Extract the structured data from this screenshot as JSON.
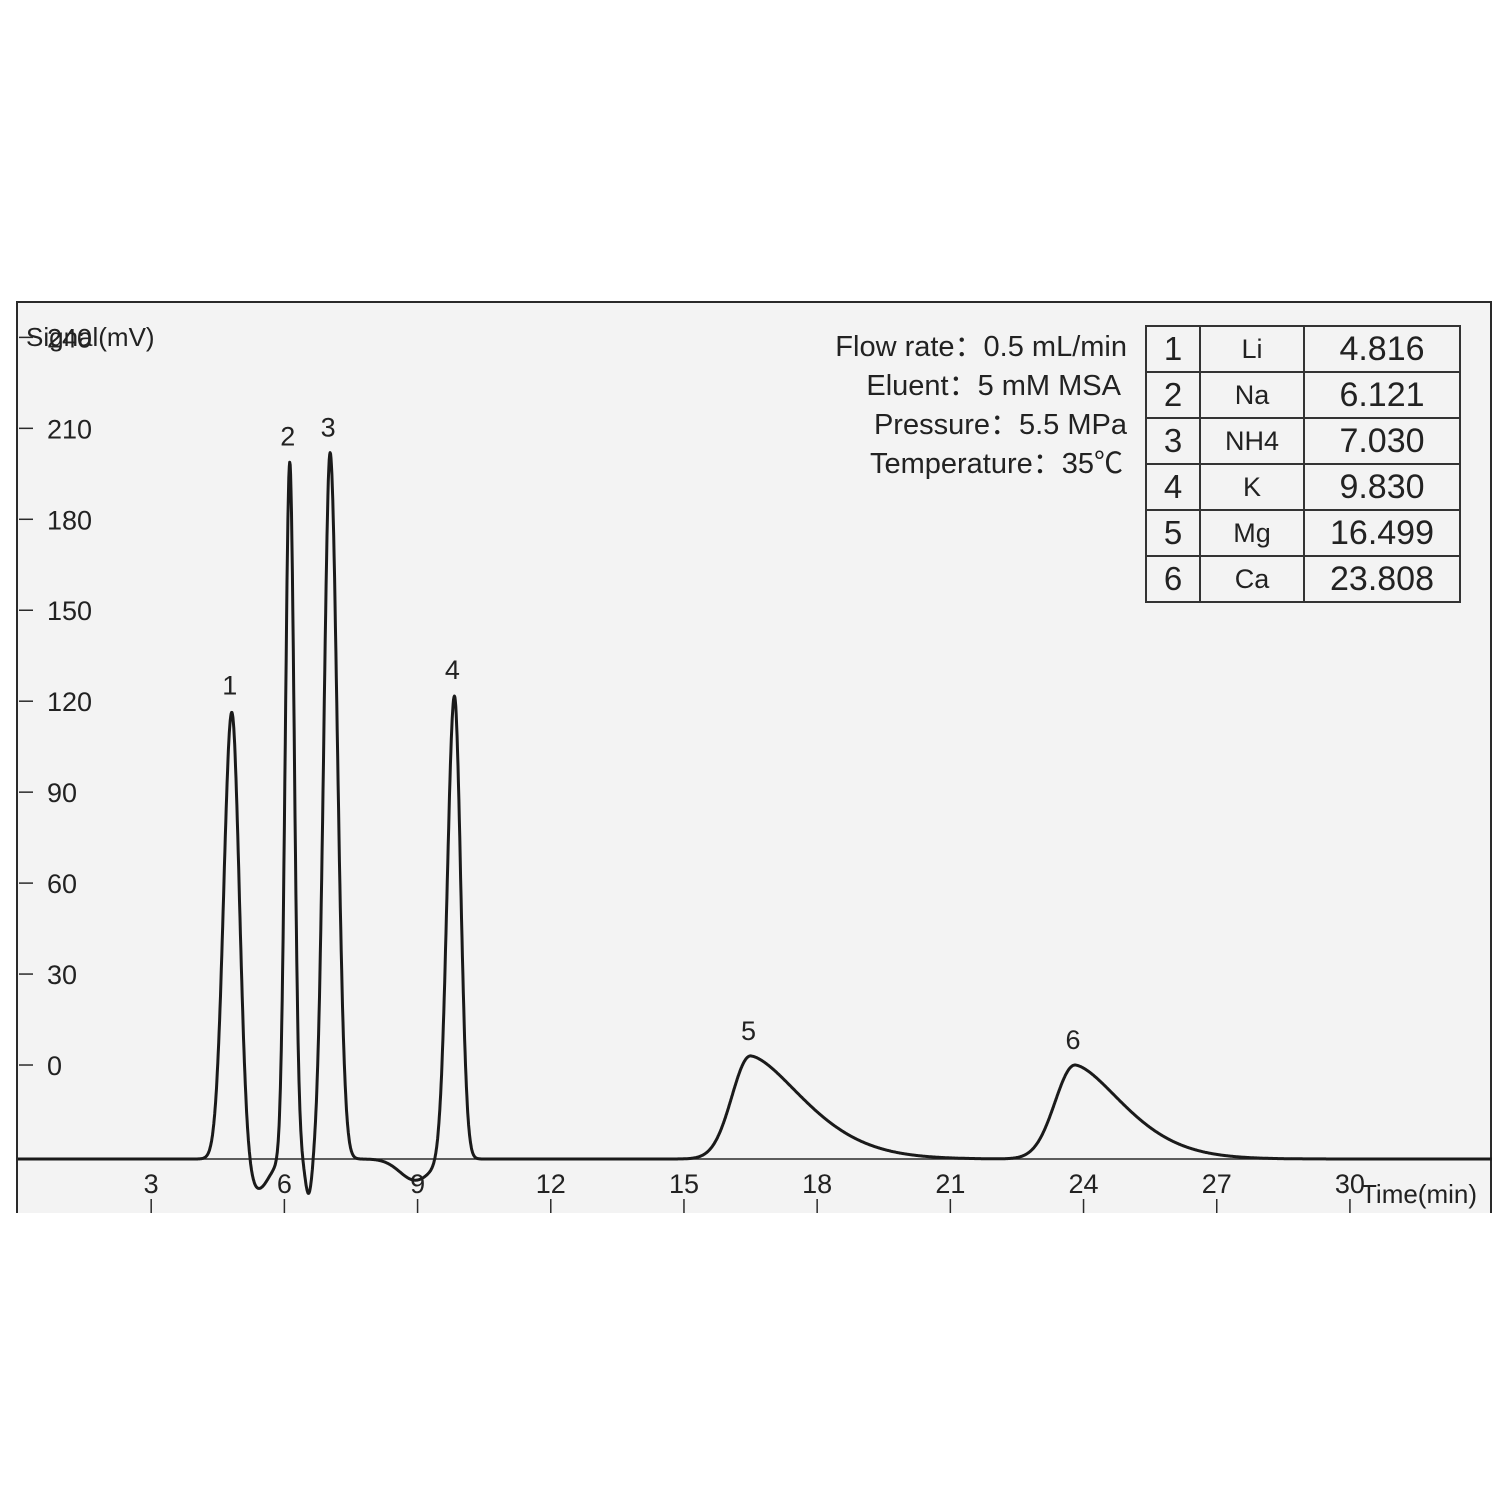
{
  "chart_data": {
    "type": "line",
    "ylabel": "Signal(mV)",
    "xlabel": "Time(min)",
    "x_ticks": [
      3,
      6,
      9,
      12,
      15,
      18,
      21,
      24,
      27,
      30
    ],
    "y_ticks": [
      0,
      30,
      60,
      90,
      120,
      150,
      180,
      210,
      240
    ],
    "xlim": [
      0,
      33.2
    ],
    "ylim": [
      -31,
      252
    ],
    "baseline": -31,
    "peaks": [
      {
        "label": "1",
        "time": 4.816,
        "height": 117
      },
      {
        "label": "2",
        "time": 6.121,
        "height": 199
      },
      {
        "label": "3",
        "time": 7.03,
        "height": 202
      },
      {
        "label": "4",
        "time": 9.83,
        "height": 122
      },
      {
        "label": "5",
        "time": 16.499,
        "height": 3
      },
      {
        "label": "6",
        "time": 23.808,
        "height": 0
      }
    ]
  },
  "conditions": {
    "flow_rate": "Flow rate：0.5 mL/min",
    "eluent": "Eluent：5 mM MSA",
    "pressure": "Pressure：5.5 MPa",
    "temperature": "Temperature：35℃"
  },
  "table": {
    "rows": [
      {
        "num": "1",
        "ion": "Li",
        "rt": "4.816"
      },
      {
        "num": "2",
        "ion": "Na",
        "rt": "6.121"
      },
      {
        "num": "3",
        "ion": "NH4",
        "rt": "7.030"
      },
      {
        "num": "4",
        "ion": "K",
        "rt": "9.830"
      },
      {
        "num": "5",
        "ion": "Mg",
        "rt": "16.499"
      },
      {
        "num": "6",
        "ion": "Ca",
        "rt": "23.808"
      }
    ]
  }
}
